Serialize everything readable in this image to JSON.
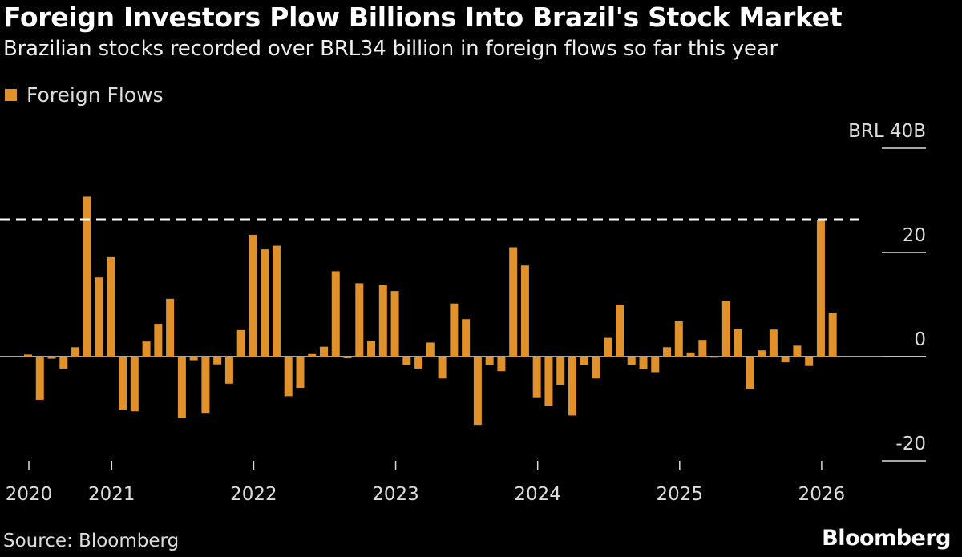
{
  "title": "Foreign Investors Plow Billions Into Brazil's Stock Market",
  "subtitle": "Brazilian stocks recorded over BRL34 billion in foreign flows so far this year",
  "source": "Source: Bloomberg",
  "logo": "Bloomberg",
  "chart_data": {
    "type": "bar",
    "title": "Foreign Investors Plow Billions Into Brazil's Stock Market",
    "ylabel": "",
    "xlabel": "",
    "y_unit_label": "BRL 40B",
    "ylim": [
      -20,
      40
    ],
    "y_ticks": [
      {
        "value": 40,
        "label": "BRL 40B"
      },
      {
        "value": 20,
        "label": "20"
      },
      {
        "value": 0,
        "label": "0"
      },
      {
        "value": -20,
        "label": "-20"
      }
    ],
    "x_ticks": [
      {
        "month": "2020-06",
        "label": "2020"
      },
      {
        "month": "2021-01",
        "label": "2021"
      },
      {
        "month": "2022-01",
        "label": "2022"
      },
      {
        "month": "2023-01",
        "label": "2023"
      },
      {
        "month": "2024-01",
        "label": "2024"
      },
      {
        "month": "2025-01",
        "label": "2025"
      },
      {
        "month": "2026-01",
        "label": "2026"
      }
    ],
    "reference_line": {
      "value": 26.3,
      "style": "dashed"
    },
    "legend_position": "top-left",
    "grid": false,
    "series": [
      {
        "name": "Foreign Flows",
        "color": "#e0912a",
        "start_month": "2020-06",
        "values": [
          0.4,
          -8.3,
          -0.4,
          -2.3,
          1.8,
          30.7,
          15.2,
          19.1,
          -10.2,
          -10.5,
          2.9,
          6.3,
          11.1,
          -11.8,
          -0.7,
          -10.8,
          -1.5,
          -5.2,
          5.1,
          23.4,
          20.6,
          21.3,
          -7.6,
          -6.0,
          0.5,
          1.9,
          16.4,
          -0.3,
          14.1,
          3.0,
          13.8,
          12.6,
          -1.6,
          -2.3,
          2.7,
          -4.2,
          10.2,
          7.2,
          -13.1,
          -1.6,
          -2.8,
          21.0,
          17.5,
          -7.8,
          -9.4,
          -5.4,
          -11.3,
          -1.6,
          -4.2,
          3.6,
          10.0,
          -1.6,
          -2.4,
          -3.0,
          1.8,
          6.8,
          0.8,
          3.2,
          -0.2,
          10.7,
          5.3,
          -6.3,
          1.2,
          5.2,
          -1.1,
          2.1,
          -1.8,
          26.3,
          8.4
        ]
      }
    ]
  }
}
